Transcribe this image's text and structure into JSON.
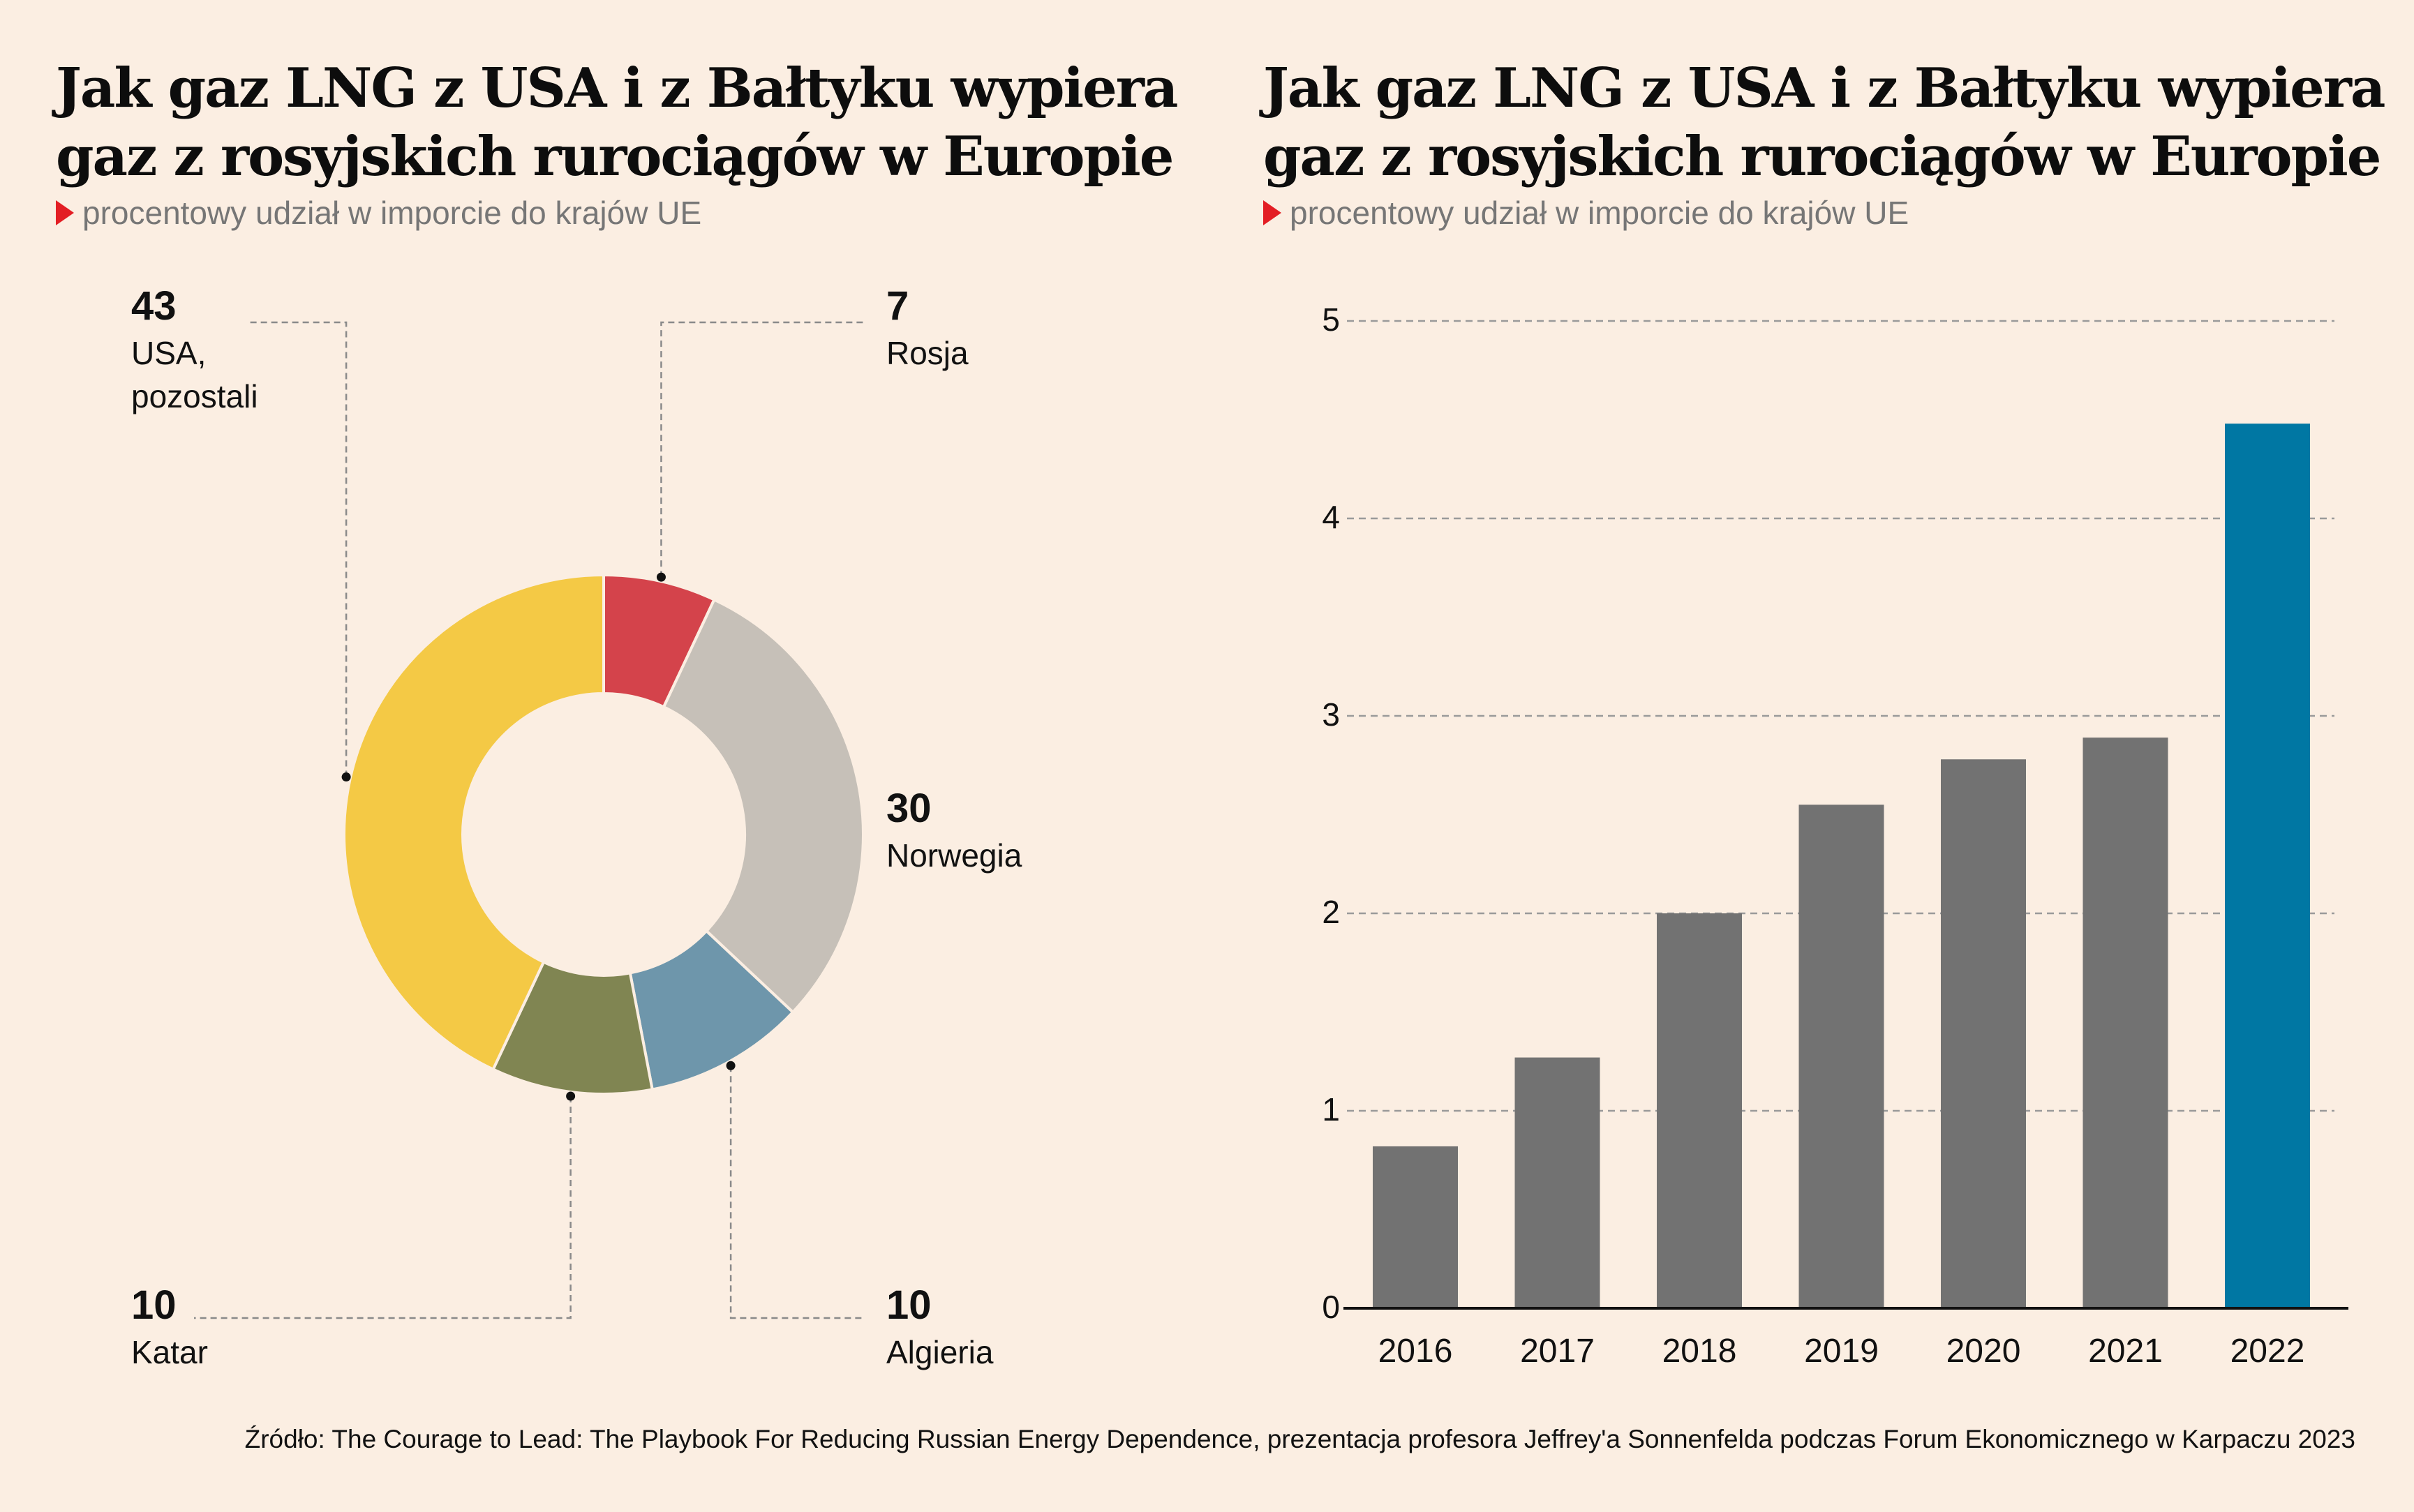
{
  "left": {
    "title_line1": "Jak gaz LNG z USA i z Bałtyku wypiera",
    "title_line2": "gaz z rosyjskich rurociągów w Europie",
    "subtitle": "procentowy udział w imporcie do krajów UE"
  },
  "right": {
    "title_line1": "Jak gaz LNG z USA i z Bałtyku wypiera",
    "title_line2": "gaz z rosyjskich rurociągów w Europie",
    "subtitle": "procentowy udział w imporcie do krajów UE"
  },
  "source": "Źródło: The Courage to Lead: The Playbook For Reducing Russian Energy Dependence, prezentacja profesora Jeffrey'a Sonnenfelda podczas Forum Ekonomicznego w Karpaczu 2023",
  "chart_data": [
    {
      "type": "pie",
      "variant": "donut",
      "slices": [
        {
          "label": "Rosja",
          "value": 7,
          "color": "#d4434b"
        },
        {
          "label": "Norwegia",
          "value": 30,
          "color": "#c6c0b8"
        },
        {
          "label": "Algieria",
          "value": 10,
          "color": "#6e96ab"
        },
        {
          "label": "Katar",
          "value": 10,
          "color": "#808552"
        },
        {
          "label": "USA, pozostali",
          "label_lines": [
            "USA,",
            "pozostali"
          ],
          "value": 43,
          "color": "#f4c945"
        }
      ]
    },
    {
      "type": "bar",
      "categories": [
        "2016",
        "2017",
        "2018",
        "2019",
        "2020",
        "2021",
        "2022"
      ],
      "values": [
        0.82,
        1.27,
        2.0,
        2.55,
        2.78,
        2.89,
        4.48
      ],
      "colors": [
        "#727272",
        "#727272",
        "#727272",
        "#727272",
        "#727272",
        "#727272",
        "#0077a3"
      ],
      "ylim": [
        0,
        5
      ],
      "yticks": [
        "0",
        "1",
        "2",
        "3",
        "4",
        "5"
      ],
      "grid": true
    }
  ]
}
